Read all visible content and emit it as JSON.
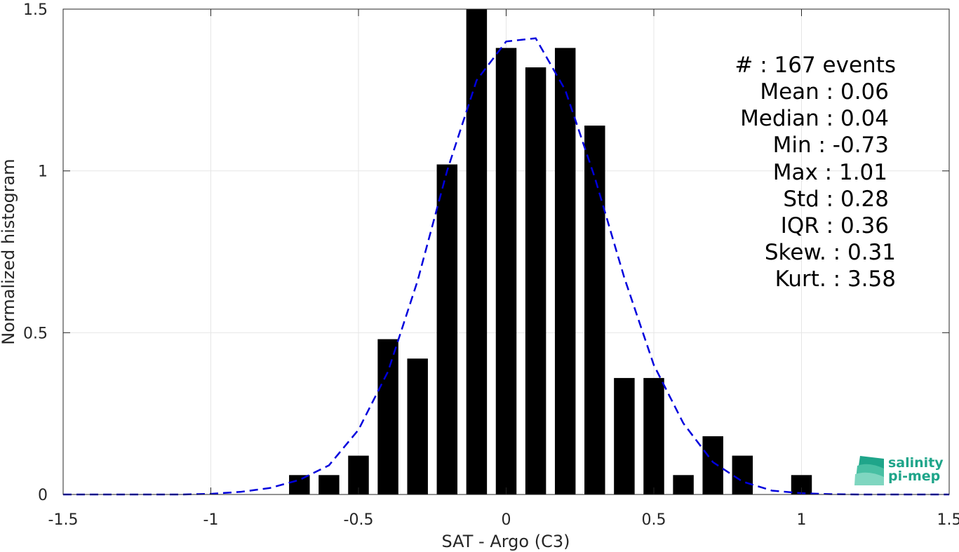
{
  "chart_data": {
    "type": "bar",
    "xlabel": "SAT - Argo (C3)",
    "ylabel": "Normalized histogram",
    "xlim": [
      -1.5,
      1.5
    ],
    "ylim": [
      0,
      1.5
    ],
    "xticks": [
      -1.5,
      -1,
      -0.5,
      0,
      0.5,
      1,
      1.5
    ],
    "xtick_labels": [
      "-1.5",
      "-1",
      "-0.5",
      "0",
      "0.5",
      "1",
      "1.5"
    ],
    "yticks": [
      0,
      0.5,
      1,
      1.5
    ],
    "ytick_labels": [
      "0",
      "0.5",
      "1",
      "1.5"
    ],
    "grid": true,
    "bar_color": "#000000",
    "bars": {
      "centers": [
        -0.7,
        -0.6,
        -0.5,
        -0.4,
        -0.3,
        -0.2,
        -0.1,
        0.0,
        0.1,
        0.2,
        0.3,
        0.4,
        0.5,
        0.6,
        0.7,
        0.8,
        1.0
      ],
      "values": [
        0.06,
        0.06,
        0.12,
        0.48,
        0.42,
        1.02,
        1.5,
        1.38,
        1.32,
        1.38,
        1.14,
        0.36,
        0.36,
        0.06,
        0.18,
        0.12,
        0.06
      ],
      "width": 0.07
    },
    "fit_curve": {
      "color": "#0000dd",
      "style": "dashed",
      "x": [
        -1.5,
        -1.4,
        -1.3,
        -1.2,
        -1.1,
        -1.0,
        -0.9,
        -0.8,
        -0.7,
        -0.6,
        -0.5,
        -0.4,
        -0.3,
        -0.2,
        -0.1,
        0.0,
        0.1,
        0.2,
        0.3,
        0.4,
        0.5,
        0.6,
        0.7,
        0.8,
        0.9,
        1.0,
        1.1,
        1.2,
        1.3,
        1.4,
        1.5
      ],
      "y": [
        0,
        0,
        0,
        0,
        0,
        0.002,
        0.008,
        0.02,
        0.045,
        0.09,
        0.2,
        0.38,
        0.66,
        1.0,
        1.28,
        1.4,
        1.41,
        1.25,
        0.98,
        0.67,
        0.4,
        0.22,
        0.1,
        0.04,
        0.012,
        0.004,
        0.001,
        0,
        0,
        0,
        0
      ]
    }
  },
  "stats": [
    {
      "label": "#  : 167 events"
    },
    {
      "label": "Mean : 0.06"
    },
    {
      "label": "Median : 0.04"
    },
    {
      "label": "Min : -0.73"
    },
    {
      "label": "Max : 1.01"
    },
    {
      "label": "Std : 0.28"
    },
    {
      "label": "IQR : 0.36"
    },
    {
      "label": "Skew. : 0.31"
    },
    {
      "label": "Kurt. : 3.58"
    }
  ],
  "logo": {
    "line1": "salinity",
    "line2": "pi-mep",
    "color": "#1fa58a"
  }
}
